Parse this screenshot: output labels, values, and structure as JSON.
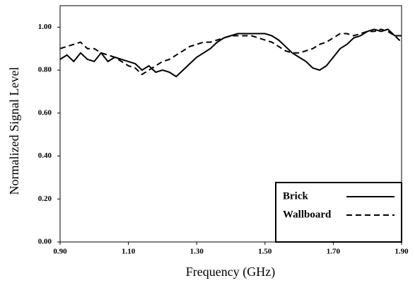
{
  "chart_data": {
    "type": "line",
    "xlabel": "Frequency (GHz)",
    "ylabel": "Normalized Signal Level",
    "x": [
      0.9,
      0.92,
      0.94,
      0.96,
      0.98,
      1.0,
      1.02,
      1.04,
      1.06,
      1.08,
      1.1,
      1.12,
      1.14,
      1.16,
      1.18,
      1.2,
      1.22,
      1.24,
      1.26,
      1.28,
      1.3,
      1.32,
      1.34,
      1.36,
      1.38,
      1.4,
      1.42,
      1.44,
      1.46,
      1.48,
      1.5,
      1.52,
      1.54,
      1.56,
      1.58,
      1.6,
      1.62,
      1.64,
      1.66,
      1.68,
      1.7,
      1.72,
      1.74,
      1.76,
      1.78,
      1.8,
      1.82,
      1.84,
      1.86,
      1.88,
      1.9
    ],
    "series": [
      {
        "name": "Brick",
        "color": "#000000",
        "line_style": "solid",
        "values": [
          0.85,
          0.87,
          0.84,
          0.88,
          0.85,
          0.84,
          0.88,
          0.84,
          0.86,
          0.85,
          0.84,
          0.83,
          0.8,
          0.82,
          0.79,
          0.8,
          0.79,
          0.77,
          0.8,
          0.83,
          0.86,
          0.88,
          0.9,
          0.93,
          0.95,
          0.96,
          0.97,
          0.97,
          0.97,
          0.97,
          0.97,
          0.96,
          0.94,
          0.91,
          0.88,
          0.86,
          0.84,
          0.81,
          0.8,
          0.82,
          0.86,
          0.9,
          0.92,
          0.95,
          0.96,
          0.98,
          0.99,
          0.98,
          0.99,
          0.96,
          0.96
        ]
      },
      {
        "name": "Wallboard",
        "color": "#000000",
        "line_style": "dashed",
        "values": [
          0.9,
          0.91,
          0.92,
          0.93,
          0.9,
          0.9,
          0.88,
          0.87,
          0.86,
          0.84,
          0.82,
          0.81,
          0.78,
          0.8,
          0.82,
          0.84,
          0.85,
          0.87,
          0.89,
          0.91,
          0.92,
          0.93,
          0.93,
          0.94,
          0.95,
          0.96,
          0.96,
          0.96,
          0.96,
          0.95,
          0.94,
          0.93,
          0.91,
          0.89,
          0.88,
          0.88,
          0.89,
          0.9,
          0.92,
          0.93,
          0.95,
          0.97,
          0.97,
          0.96,
          0.97,
          0.98,
          0.98,
          0.99,
          0.98,
          0.96,
          0.93
        ]
      }
    ],
    "xlim": [
      0.9,
      1.9
    ],
    "xticks": [
      {
        "value": 0.9,
        "label": "0.90"
      },
      {
        "value": 1.1,
        "label": "1.10"
      },
      {
        "value": 1.3,
        "label": "1.30"
      },
      {
        "value": 1.5,
        "label": "1.50"
      },
      {
        "value": 1.7,
        "label": "1.70"
      },
      {
        "value": 1.9,
        "label": "1.90"
      }
    ],
    "ylim": [
      0,
      1.1
    ],
    "yticks": [
      {
        "value": 0,
        "label": "0.00"
      },
      {
        "value": 0.2,
        "label": "0.20"
      },
      {
        "value": 0.4,
        "label": "0.40"
      },
      {
        "value": 0.6,
        "label": "0.60"
      },
      {
        "value": 0.8,
        "label": "0.80"
      },
      {
        "value": 1.0,
        "label": "1.00"
      }
    ],
    "legend": "lower right"
  }
}
